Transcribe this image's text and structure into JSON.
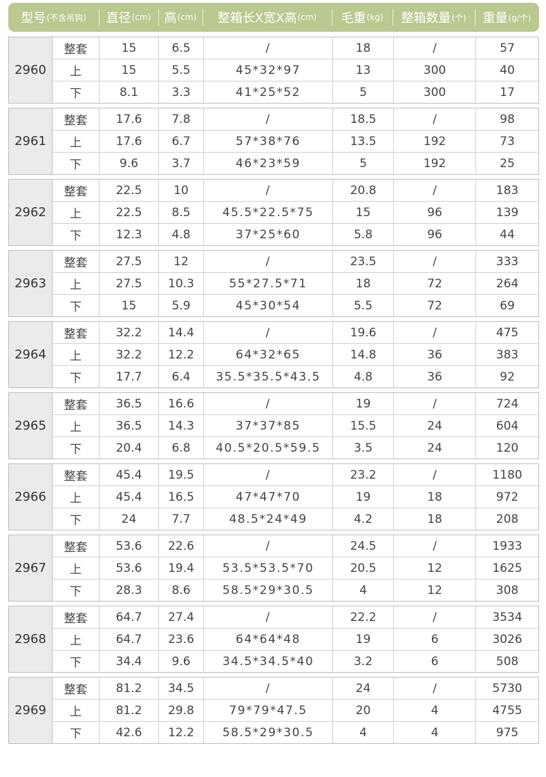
{
  "header": [
    {
      "main": "型号",
      "sub": "(不含吊钩)"
    },
    {
      "main": "直径",
      "sub": "(cm)"
    },
    {
      "main": "高",
      "sub": "(cm)"
    },
    {
      "main": "整箱长X宽X高",
      "sub": "(cm)"
    },
    {
      "main": "毛重",
      "sub": "(kg)"
    },
    {
      "main": "整箱数量",
      "sub": "(个)"
    },
    {
      "main": "重量",
      "sub": "(g/个)"
    }
  ],
  "groups": [
    {
      "model": "2960",
      "rows": [
        {
          "part": "整套",
          "diameter": "15",
          "height": "6.5",
          "box": "/",
          "gross": "18",
          "qty": "/",
          "weight": "57"
        },
        {
          "part": "上",
          "diameter": "15",
          "height": "5.5",
          "box": "45*32*97",
          "gross": "13",
          "qty": "300",
          "weight": "40"
        },
        {
          "part": "下",
          "diameter": "8.1",
          "height": "3.3",
          "box": "41*25*52",
          "gross": "5",
          "qty": "300",
          "weight": "17"
        }
      ]
    },
    {
      "model": "2961",
      "rows": [
        {
          "part": "整套",
          "diameter": "17.6",
          "height": "7.8",
          "box": "/",
          "gross": "18.5",
          "qty": "/",
          "weight": "98"
        },
        {
          "part": "上",
          "diameter": "17.6",
          "height": "6.7",
          "box": "57*38*76",
          "gross": "13.5",
          "qty": "192",
          "weight": "73"
        },
        {
          "part": "下",
          "diameter": "9.6",
          "height": "3.7",
          "box": "46*23*59",
          "gross": "5",
          "qty": "192",
          "weight": "25"
        }
      ]
    },
    {
      "model": "2962",
      "rows": [
        {
          "part": "整套",
          "diameter": "22.5",
          "height": "10",
          "box": "/",
          "gross": "20.8",
          "qty": "/",
          "weight": "183"
        },
        {
          "part": "上",
          "diameter": "22.5",
          "height": "8.5",
          "box": "45.5*22.5*75",
          "gross": "15",
          "qty": "96",
          "weight": "139"
        },
        {
          "part": "下",
          "diameter": "12.3",
          "height": "4.8",
          "box": "37*25*60",
          "gross": "5.8",
          "qty": "96",
          "weight": "44"
        }
      ]
    },
    {
      "model": "2963",
      "rows": [
        {
          "part": "整套",
          "diameter": "27.5",
          "height": "12",
          "box": "/",
          "gross": "23.5",
          "qty": "/",
          "weight": "333"
        },
        {
          "part": "上",
          "diameter": "27.5",
          "height": "10.3",
          "box": "55*27.5*71",
          "gross": "18",
          "qty": "72",
          "weight": "264"
        },
        {
          "part": "下",
          "diameter": "15",
          "height": "5.9",
          "box": "45*30*54",
          "gross": "5.5",
          "qty": "72",
          "weight": "69"
        }
      ]
    },
    {
      "model": "2964",
      "rows": [
        {
          "part": "整套",
          "diameter": "32.2",
          "height": "14.4",
          "box": "/",
          "gross": "19.6",
          "qty": "/",
          "weight": "475"
        },
        {
          "part": "上",
          "diameter": "32.2",
          "height": "12.2",
          "box": "64*32*65",
          "gross": "14.8",
          "qty": "36",
          "weight": "383"
        },
        {
          "part": "下",
          "diameter": "17.7",
          "height": "6.4",
          "box": "35.5*35.5*43.5",
          "gross": "4.8",
          "qty": "36",
          "weight": "92"
        }
      ]
    },
    {
      "model": "2965",
      "rows": [
        {
          "part": "整套",
          "diameter": "36.5",
          "height": "16.6",
          "box": "/",
          "gross": "19",
          "qty": "/",
          "weight": "724"
        },
        {
          "part": "上",
          "diameter": "36.5",
          "height": "14.3",
          "box": "37*37*85",
          "gross": "15.5",
          "qty": "24",
          "weight": "604"
        },
        {
          "part": "下",
          "diameter": "20.4",
          "height": "6.8",
          "box": "40.5*20.5*59.5",
          "gross": "3.5",
          "qty": "24",
          "weight": "120"
        }
      ]
    },
    {
      "model": "2966",
      "rows": [
        {
          "part": "整套",
          "diameter": "45.4",
          "height": "19.5",
          "box": "/",
          "gross": "23.2",
          "qty": "/",
          "weight": "1180"
        },
        {
          "part": "上",
          "diameter": "45.4",
          "height": "16.5",
          "box": "47*47*70",
          "gross": "19",
          "qty": "18",
          "weight": "972"
        },
        {
          "part": "下",
          "diameter": "24",
          "height": "7.7",
          "box": "48.5*24*49",
          "gross": "4.2",
          "qty": "18",
          "weight": "208"
        }
      ]
    },
    {
      "model": "2967",
      "rows": [
        {
          "part": "整套",
          "diameter": "53.6",
          "height": "22.6",
          "box": "/",
          "gross": "24.5",
          "qty": "/",
          "weight": "1933"
        },
        {
          "part": "上",
          "diameter": "53.6",
          "height": "19.4",
          "box": "53.5*53.5*70",
          "gross": "20.5",
          "qty": "12",
          "weight": "1625"
        },
        {
          "part": "下",
          "diameter": "28.3",
          "height": "8.6",
          "box": "58.5*29*30.5",
          "gross": "4",
          "qty": "12",
          "weight": "308"
        }
      ]
    },
    {
      "model": "2968",
      "rows": [
        {
          "part": "整套",
          "diameter": "64.7",
          "height": "27.4",
          "box": "/",
          "gross": "22.2",
          "qty": "/",
          "weight": "3534"
        },
        {
          "part": "上",
          "diameter": "64.7",
          "height": "23.6",
          "box": "64*64*48",
          "gross": "19",
          "qty": "6",
          "weight": "3026"
        },
        {
          "part": "下",
          "diameter": "34.4",
          "height": "9.6",
          "box": "34.5*34.5*40",
          "gross": "3.2",
          "qty": "6",
          "weight": "508"
        }
      ]
    },
    {
      "model": "2969",
      "rows": [
        {
          "part": "整套",
          "diameter": "81.2",
          "height": "34.5",
          "box": "/",
          "gross": "24",
          "qty": "/",
          "weight": "5730"
        },
        {
          "part": "上",
          "diameter": "81.2",
          "height": "29.8",
          "box": "79*79*47.5",
          "gross": "20",
          "qty": "4",
          "weight": "4755"
        },
        {
          "part": "下",
          "diameter": "42.6",
          "height": "12.2",
          "box": "58.5*29*30.5",
          "gross": "4",
          "qty": "4",
          "weight": "975"
        }
      ]
    }
  ]
}
